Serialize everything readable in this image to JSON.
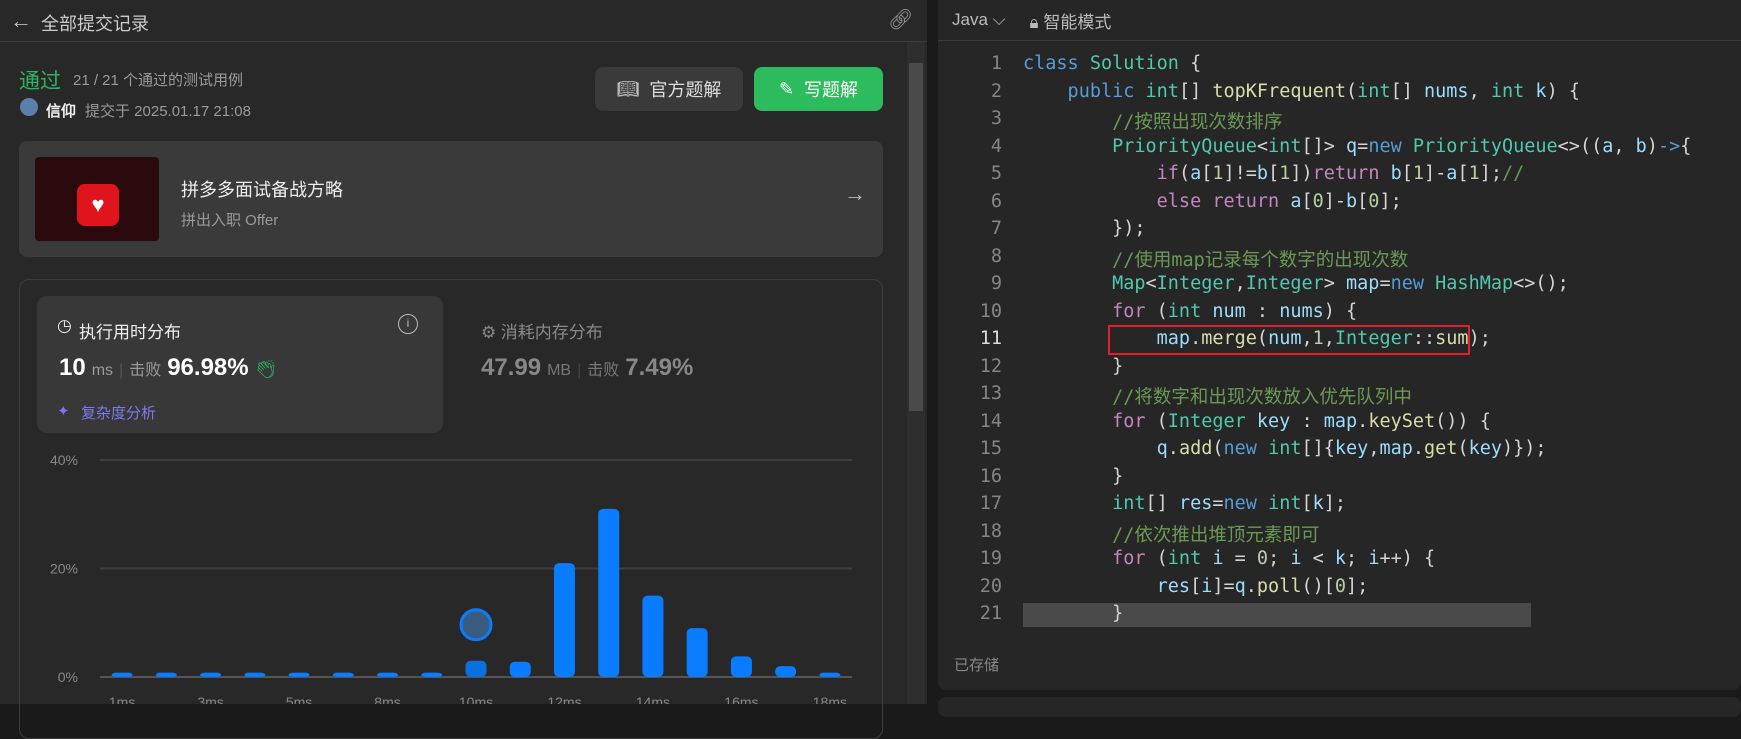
{
  "header": {
    "title": "全部提交记录",
    "back_icon": "arrow-left-icon",
    "link_icon": "link-icon"
  },
  "result": {
    "status": "通过",
    "testcases": "21 / 21 个通过的测试用例",
    "user": "信仰",
    "submitted": "提交于 2025.01.17 21:08",
    "status_color": "#2db55d"
  },
  "buttons": {
    "official": "官方题解",
    "write": "写题解",
    "write_color": "#2cbb5d"
  },
  "banner": {
    "title": "拼多多面试备战方略",
    "subtitle": "拼出入职 Offer"
  },
  "runtime": {
    "title": "执行用时分布",
    "value": "10",
    "unit": "ms",
    "beats_label": "击败",
    "beats": "96.98%",
    "complexity": "复杂度分析"
  },
  "memory": {
    "title": "消耗内存分布",
    "value": "47.99",
    "unit": "MB",
    "beats_label": "击败",
    "beats": "7.49%"
  },
  "chart_data": {
    "type": "bar",
    "categories": [
      "1ms",
      "",
      "3ms",
      "",
      "5ms",
      "",
      "8ms",
      "",
      "10ms",
      "",
      "12ms",
      "",
      "14ms",
      "",
      "16ms",
      "",
      "18ms"
    ],
    "values": [
      0.8,
      0.8,
      0.8,
      0.8,
      0.8,
      0.8,
      0.8,
      0.8,
      3,
      2.8,
      21,
      31,
      15,
      9,
      3.8,
      2,
      0.8
    ],
    "yticks": [
      "0%",
      "20%",
      "40%"
    ],
    "ylim": [
      0,
      40
    ],
    "highlight_index": 8,
    "grid": true,
    "bar_color": "#0a7cff"
  },
  "editor": {
    "language": "Java",
    "mode": "智能模式",
    "status": "已存储",
    "highlight_line": 11,
    "lines": [
      [
        [
          "class ",
          "k"
        ],
        [
          "Solution ",
          "t"
        ],
        [
          "{",
          "o"
        ]
      ],
      [
        [
          "    public ",
          "k"
        ],
        [
          "int",
          "t"
        ],
        [
          "[] ",
          "o"
        ],
        [
          "topKFrequent",
          "f"
        ],
        [
          "(",
          "o"
        ],
        [
          "int",
          "t"
        ],
        [
          "[] ",
          "o"
        ],
        [
          "nums",
          "v"
        ],
        [
          ", ",
          "o"
        ],
        [
          "int ",
          "t"
        ],
        [
          "k",
          "v"
        ],
        [
          ") {",
          "o"
        ]
      ],
      [
        [
          "        //按照出现次数排序",
          "c"
        ]
      ],
      [
        [
          "        PriorityQueue",
          "t"
        ],
        [
          "<",
          "o"
        ],
        [
          "int",
          "t"
        ],
        [
          "[]> ",
          "o"
        ],
        [
          "q",
          "v"
        ],
        [
          "=",
          "o"
        ],
        [
          "new ",
          "k"
        ],
        [
          "PriorityQueue",
          "t"
        ],
        [
          "<>((",
          "o"
        ],
        [
          "a",
          "v"
        ],
        [
          ", ",
          "o"
        ],
        [
          "b",
          "v"
        ],
        [
          ")",
          "o"
        ],
        [
          "->",
          "k"
        ],
        [
          "{",
          "o"
        ]
      ],
      [
        [
          "            if",
          "p"
        ],
        [
          "(",
          "o"
        ],
        [
          "a",
          "v"
        ],
        [
          "[",
          "o"
        ],
        [
          "1",
          "n"
        ],
        [
          "]!=",
          "o"
        ],
        [
          "b",
          "v"
        ],
        [
          "[",
          "o"
        ],
        [
          "1",
          "n"
        ],
        [
          "])",
          "o"
        ],
        [
          "return ",
          "p"
        ],
        [
          "b",
          "v"
        ],
        [
          "[",
          "o"
        ],
        [
          "1",
          "n"
        ],
        [
          "]-",
          "o"
        ],
        [
          "a",
          "v"
        ],
        [
          "[",
          "o"
        ],
        [
          "1",
          "n"
        ],
        [
          "];",
          "o"
        ],
        [
          "//",
          "c"
        ]
      ],
      [
        [
          "            else return ",
          "p"
        ],
        [
          "a",
          "v"
        ],
        [
          "[",
          "o"
        ],
        [
          "0",
          "n"
        ],
        [
          "]-",
          "o"
        ],
        [
          "b",
          "v"
        ],
        [
          "[",
          "o"
        ],
        [
          "0",
          "n"
        ],
        [
          "];",
          "o"
        ]
      ],
      [
        [
          "        });",
          "o"
        ]
      ],
      [
        [
          "        //使用map记录每个数字的出现次数",
          "c"
        ]
      ],
      [
        [
          "        Map",
          "t"
        ],
        [
          "<",
          "o"
        ],
        [
          "Integer",
          "t"
        ],
        [
          ",",
          "o"
        ],
        [
          "Integer",
          "t"
        ],
        [
          "> ",
          "o"
        ],
        [
          "map",
          "v"
        ],
        [
          "=",
          "o"
        ],
        [
          "new ",
          "k"
        ],
        [
          "HashMap",
          "t"
        ],
        [
          "<>();",
          "o"
        ]
      ],
      [
        [
          "        for ",
          "p"
        ],
        [
          "(",
          "o"
        ],
        [
          "int ",
          "t"
        ],
        [
          "num ",
          "v"
        ],
        [
          ": ",
          "o"
        ],
        [
          "nums",
          "v"
        ],
        [
          ") {",
          "o"
        ]
      ],
      [
        [
          "            map",
          "v"
        ],
        [
          ".",
          "o"
        ],
        [
          "merge",
          "f"
        ],
        [
          "(",
          "o"
        ],
        [
          "num",
          "v"
        ],
        [
          ",",
          "o"
        ],
        [
          "1",
          "n"
        ],
        [
          ",",
          "o"
        ],
        [
          "Integer",
          "t"
        ],
        [
          "::",
          "o"
        ],
        [
          "sum",
          "f"
        ],
        [
          ");",
          "o"
        ]
      ],
      [
        [
          "        }",
          "o"
        ]
      ],
      [
        [
          "        //将数字和出现次数放入优先队列中",
          "c"
        ]
      ],
      [
        [
          "        for ",
          "p"
        ],
        [
          "(",
          "o"
        ],
        [
          "Integer ",
          "t"
        ],
        [
          "key ",
          "v"
        ],
        [
          ": ",
          "o"
        ],
        [
          "map",
          "v"
        ],
        [
          ".",
          "o"
        ],
        [
          "keySet",
          "f"
        ],
        [
          "()) {",
          "o"
        ]
      ],
      [
        [
          "            q",
          "v"
        ],
        [
          ".",
          "o"
        ],
        [
          "add",
          "f"
        ],
        [
          "(",
          "o"
        ],
        [
          "new ",
          "k"
        ],
        [
          "int",
          "t"
        ],
        [
          "[]{",
          "o"
        ],
        [
          "key",
          "v"
        ],
        [
          ",",
          "o"
        ],
        [
          "map",
          "v"
        ],
        [
          ".",
          "o"
        ],
        [
          "get",
          "f"
        ],
        [
          "(",
          "o"
        ],
        [
          "key",
          "v"
        ],
        [
          ")});",
          "o"
        ]
      ],
      [
        [
          "        }",
          "o"
        ]
      ],
      [
        [
          "        int",
          "t"
        ],
        [
          "[] ",
          "o"
        ],
        [
          "res",
          "v"
        ],
        [
          "=",
          "o"
        ],
        [
          "new ",
          "k"
        ],
        [
          "int",
          "t"
        ],
        [
          "[",
          "o"
        ],
        [
          "k",
          "v"
        ],
        [
          "];",
          "o"
        ]
      ],
      [
        [
          "        //依次推出堆顶元素即可",
          "c"
        ]
      ],
      [
        [
          "        for ",
          "p"
        ],
        [
          "(",
          "o"
        ],
        [
          "int ",
          "t"
        ],
        [
          "i ",
          "v"
        ],
        [
          "= ",
          "o"
        ],
        [
          "0",
          "n"
        ],
        [
          "; ",
          "o"
        ],
        [
          "i ",
          "v"
        ],
        [
          "< ",
          "o"
        ],
        [
          "k",
          "v"
        ],
        [
          "; ",
          "o"
        ],
        [
          "i",
          "v"
        ],
        [
          "++) {",
          "o"
        ]
      ],
      [
        [
          "            res",
          "v"
        ],
        [
          "[",
          "o"
        ],
        [
          "i",
          "v"
        ],
        [
          "]=",
          "o"
        ],
        [
          "q",
          "v"
        ],
        [
          ".",
          "o"
        ],
        [
          "poll",
          "f"
        ],
        [
          "()[",
          "o"
        ],
        [
          "0",
          "n"
        ],
        [
          "];",
          "o"
        ]
      ],
      [
        [
          "        }",
          "o"
        ]
      ]
    ]
  }
}
